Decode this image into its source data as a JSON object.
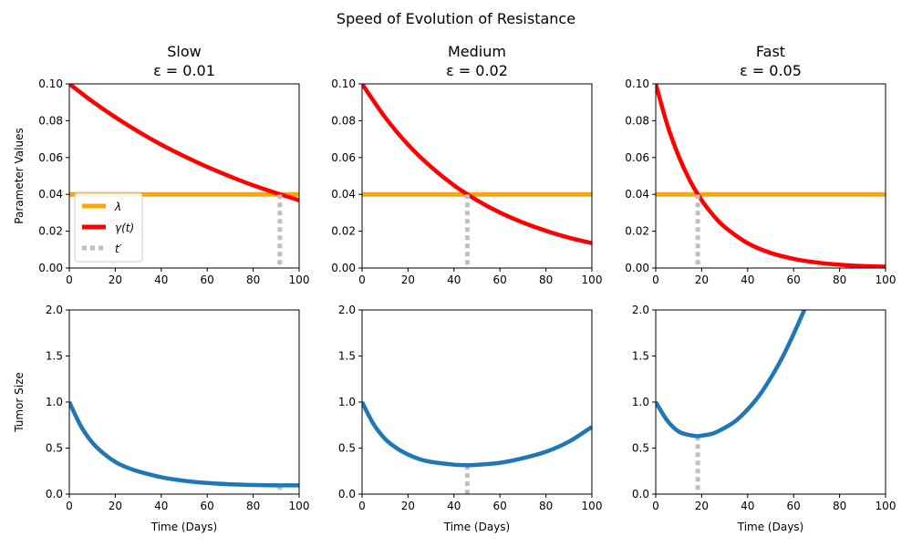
{
  "suptitle": "Speed of Evolution of Resistance",
  "colors": {
    "lambda": "#ffa500",
    "gamma": "#ff0000",
    "tprime": "#bfbfbf",
    "tumor": "#1f77b4"
  },
  "chart_data": [
    {
      "type": "line",
      "row": "top",
      "col": 0,
      "title": "Slow",
      "subtitle": "ε = 0.01",
      "epsilon": 0.01,
      "xlabel": "",
      "ylabel": "Parameter Values",
      "xlim": [
        0,
        100
      ],
      "ylim": [
        0,
        0.1
      ],
      "xticks": [
        "0",
        "20",
        "40",
        "60",
        "80",
        "100"
      ],
      "yticks": [
        "0.00",
        "0.02",
        "0.04",
        "0.06",
        "0.08",
        "0.10"
      ],
      "x": [
        0,
        10,
        20,
        30,
        40,
        50,
        60,
        70,
        80,
        90,
        100
      ],
      "series": [
        {
          "name": "λ",
          "values": [
            0.04,
            0.04,
            0.04,
            0.04,
            0.04,
            0.04,
            0.04,
            0.04,
            0.04,
            0.04,
            0.04
          ]
        },
        {
          "name": "γ(t)",
          "values": [
            0.1,
            0.0905,
            0.0819,
            0.0741,
            0.067,
            0.0607,
            0.0549,
            0.0497,
            0.0449,
            0.0407,
            0.0368
          ]
        }
      ],
      "t_prime": 91.6,
      "legend": {
        "placement": "lower-left",
        "entries": [
          "λ",
          "γ(t)",
          "t′"
        ]
      }
    },
    {
      "type": "line",
      "row": "top",
      "col": 1,
      "title": "Medium",
      "subtitle": "ε = 0.02",
      "epsilon": 0.02,
      "xlabel": "",
      "ylabel": "",
      "xlim": [
        0,
        100
      ],
      "ylim": [
        0,
        0.1
      ],
      "xticks": [
        "0",
        "20",
        "40",
        "60",
        "80",
        "100"
      ],
      "yticks": [
        "0.00",
        "0.02",
        "0.04",
        "0.06",
        "0.08",
        "0.10"
      ],
      "x": [
        0,
        10,
        20,
        30,
        40,
        50,
        60,
        70,
        80,
        90,
        100
      ],
      "series": [
        {
          "name": "λ",
          "values": [
            0.04,
            0.04,
            0.04,
            0.04,
            0.04,
            0.04,
            0.04,
            0.04,
            0.04,
            0.04,
            0.04
          ]
        },
        {
          "name": "γ(t)",
          "values": [
            0.1,
            0.0819,
            0.067,
            0.0549,
            0.0449,
            0.0368,
            0.0301,
            0.0247,
            0.0202,
            0.0165,
            0.0135
          ]
        }
      ],
      "t_prime": 45.8
    },
    {
      "type": "line",
      "row": "top",
      "col": 2,
      "title": "Fast",
      "subtitle": "ε = 0.05",
      "epsilon": 0.05,
      "xlabel": "",
      "ylabel": "",
      "xlim": [
        0,
        100
      ],
      "ylim": [
        0,
        0.1
      ],
      "xticks": [
        "0",
        "20",
        "40",
        "60",
        "80",
        "100"
      ],
      "yticks": [
        "0.00",
        "0.02",
        "0.04",
        "0.06",
        "0.08",
        "0.10"
      ],
      "x": [
        0,
        5,
        10,
        15,
        20,
        25,
        30,
        40,
        50,
        60,
        70,
        80,
        90,
        100
      ],
      "series": [
        {
          "name": "λ",
          "values": [
            0.04,
            0.04,
            0.04,
            0.04,
            0.04,
            0.04,
            0.04,
            0.04,
            0.04,
            0.04,
            0.04,
            0.04,
            0.04,
            0.04
          ]
        },
        {
          "name": "γ(t)",
          "values": [
            0.1,
            0.0779,
            0.0607,
            0.0472,
            0.0368,
            0.0287,
            0.0223,
            0.0135,
            0.0082,
            0.005,
            0.003,
            0.0018,
            0.0011,
            0.0007
          ]
        }
      ],
      "t_prime": 18.3
    },
    {
      "type": "line",
      "row": "bottom",
      "col": 0,
      "title": "",
      "subtitle": "",
      "xlabel": "Time (Days)",
      "ylabel": "Tumor Size",
      "xlim": [
        0,
        100
      ],
      "ylim": [
        0,
        2
      ],
      "xticks": [
        "0",
        "20",
        "40",
        "60",
        "80",
        "100"
      ],
      "yticks": [
        "0.0",
        "0.5",
        "1.0",
        "1.5",
        "2.0"
      ],
      "x": [
        0,
        5,
        10,
        15,
        20,
        25,
        30,
        40,
        50,
        60,
        70,
        80,
        90,
        100
      ],
      "series": [
        {
          "name": "",
          "values": [
            1.0,
            0.74,
            0.56,
            0.44,
            0.35,
            0.29,
            0.247,
            0.184,
            0.145,
            0.121,
            0.107,
            0.099,
            0.095,
            0.095
          ]
        }
      ],
      "t_prime": 91.6
    },
    {
      "type": "line",
      "row": "bottom",
      "col": 1,
      "title": "",
      "subtitle": "",
      "xlabel": "Time (Days)",
      "ylabel": "",
      "xlim": [
        0,
        100
      ],
      "ylim": [
        0,
        2
      ],
      "xticks": [
        "0",
        "20",
        "40",
        "60",
        "80",
        "100"
      ],
      "yticks": [
        "0.0",
        "0.5",
        "1.0",
        "1.5",
        "2.0"
      ],
      "x": [
        0,
        5,
        10,
        15,
        20,
        25,
        30,
        40,
        46,
        50,
        60,
        70,
        80,
        90,
        100
      ],
      "series": [
        {
          "name": "",
          "values": [
            1.0,
            0.76,
            0.6,
            0.5,
            0.43,
            0.38,
            0.35,
            0.32,
            0.315,
            0.318,
            0.34,
            0.39,
            0.46,
            0.57,
            0.73
          ]
        }
      ],
      "t_prime": 45.8
    },
    {
      "type": "line",
      "row": "bottom",
      "col": 2,
      "title": "",
      "subtitle": "",
      "xlabel": "Time (Days)",
      "ylabel": "",
      "xlim": [
        0,
        100
      ],
      "ylim": [
        0,
        2
      ],
      "xticks": [
        "0",
        "20",
        "40",
        "60",
        "80",
        "100"
      ],
      "yticks": [
        "0.0",
        "0.5",
        "1.0",
        "1.5",
        "2.0"
      ],
      "x": [
        0,
        5,
        10,
        15,
        18,
        20,
        25,
        30,
        35,
        40,
        45,
        50,
        55,
        60,
        65
      ],
      "series": [
        {
          "name": "",
          "values": [
            1.0,
            0.8,
            0.68,
            0.64,
            0.63,
            0.635,
            0.66,
            0.72,
            0.8,
            0.92,
            1.07,
            1.26,
            1.48,
            1.74,
            2.02
          ]
        }
      ],
      "t_prime": 18.3
    }
  ]
}
